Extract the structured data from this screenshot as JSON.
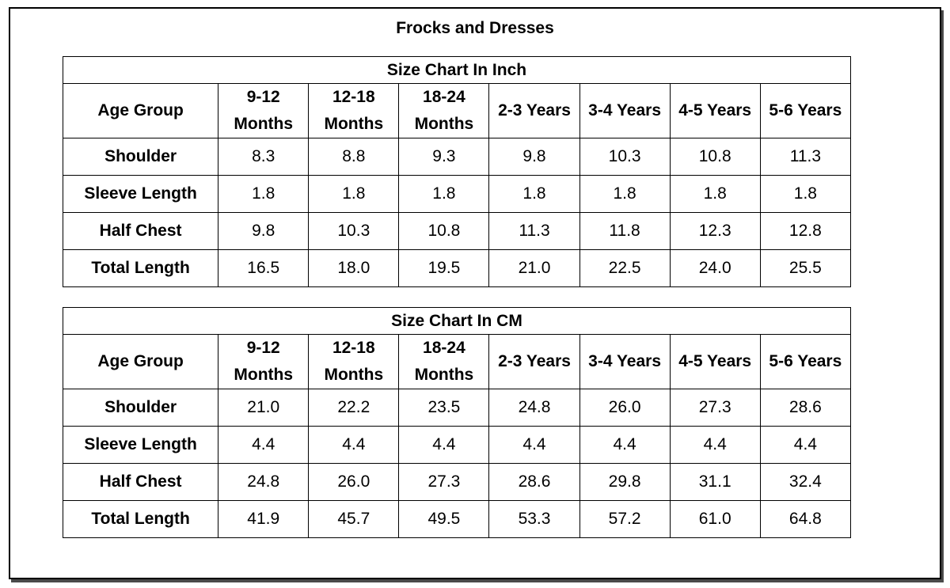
{
  "title": "Frocks and Dresses",
  "tables": [
    {
      "caption": "Size Chart In Inch",
      "header_label": "Age Group",
      "columns": [
        [
          "9-12",
          "Months"
        ],
        [
          "12-18",
          "Months"
        ],
        [
          "18-24",
          "Months"
        ],
        [
          "2-3 Years"
        ],
        [
          "3-4 Years"
        ],
        [
          "4-5 Years"
        ],
        [
          "5-6 Years"
        ]
      ],
      "rows": [
        {
          "label": "Shoulder",
          "values": [
            "8.3",
            "8.8",
            "9.3",
            "9.8",
            "10.3",
            "10.8",
            "11.3"
          ]
        },
        {
          "label": "Sleeve Length",
          "values": [
            "1.8",
            "1.8",
            "1.8",
            "1.8",
            "1.8",
            "1.8",
            "1.8"
          ]
        },
        {
          "label": "Half Chest",
          "values": [
            "9.8",
            "10.3",
            "10.8",
            "11.3",
            "11.8",
            "12.3",
            "12.8"
          ]
        },
        {
          "label": "Total Length",
          "values": [
            "16.5",
            "18.0",
            "19.5",
            "21.0",
            "22.5",
            "24.0",
            "25.5"
          ]
        }
      ]
    },
    {
      "caption": "Size Chart In CM",
      "header_label": "Age Group",
      "columns": [
        [
          "9-12",
          "Months"
        ],
        [
          "12-18",
          "Months"
        ],
        [
          "18-24",
          "Months"
        ],
        [
          "2-3 Years"
        ],
        [
          "3-4 Years"
        ],
        [
          "4-5 Years"
        ],
        [
          "5-6 Years"
        ]
      ],
      "rows": [
        {
          "label": "Shoulder",
          "values": [
            "21.0",
            "22.2",
            "23.5",
            "24.8",
            "26.0",
            "27.3",
            "28.6"
          ]
        },
        {
          "label": "Sleeve Length",
          "values": [
            "4.4",
            "4.4",
            "4.4",
            "4.4",
            "4.4",
            "4.4",
            "4.4"
          ]
        },
        {
          "label": "Half Chest",
          "values": [
            "24.8",
            "26.0",
            "27.3",
            "28.6",
            "29.8",
            "31.1",
            "32.4"
          ]
        },
        {
          "label": "Total Length",
          "values": [
            "41.9",
            "45.7",
            "49.5",
            "53.3",
            "57.2",
            "61.0",
            "64.8"
          ]
        }
      ]
    }
  ]
}
